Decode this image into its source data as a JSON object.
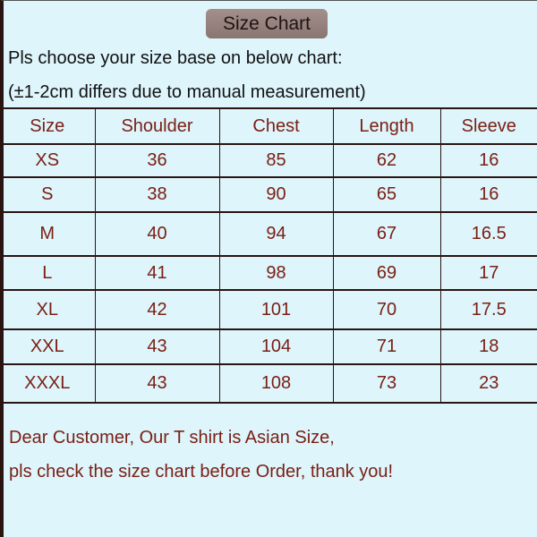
{
  "title": "Size Chart",
  "intro": [
    "Pls choose your size base on below chart:",
    "(±1-2cm differs due to manual measurement)"
  ],
  "table": {
    "headers": [
      "Size",
      "Shoulder",
      "Chest",
      "Length",
      "Sleeve"
    ],
    "rows": [
      [
        "XS",
        "36",
        "85",
        "62",
        "16"
      ],
      [
        "S",
        "38",
        "90",
        "65",
        "16"
      ],
      [
        "M",
        "40",
        "94",
        "67",
        "16.5"
      ],
      [
        "L",
        "41",
        "98",
        "69",
        "17"
      ],
      [
        "XL",
        "42",
        "101",
        "70",
        "17.5"
      ],
      [
        "XXL",
        "43",
        "104",
        "71",
        "18"
      ],
      [
        "XXXL",
        "43",
        "108",
        "73",
        "23"
      ]
    ]
  },
  "notes": [
    "Dear Customer, Our T shirt is Asian Size,",
    "pls check the size chart before Order, thank you!"
  ],
  "colors": {
    "background": "#def5fb",
    "text_accent": "#7a2015",
    "border": "#2a1412"
  }
}
